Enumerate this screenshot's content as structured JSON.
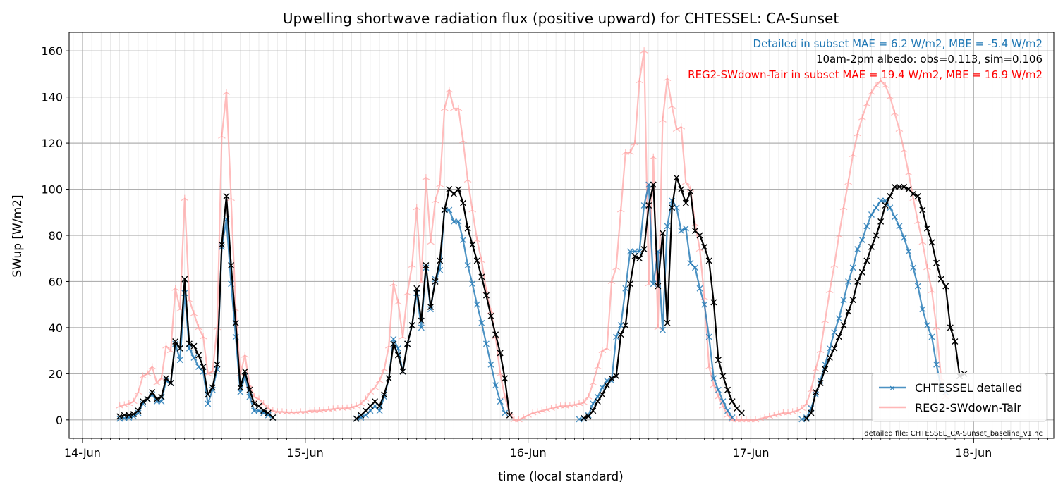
{
  "chart_data": {
    "type": "line",
    "title": "Upwelling shortwave radiation flux (positive upward) for CHTESSEL: CA-Sunset",
    "xlabel": "time (local standard)",
    "ylabel": "SWup [W/m2]",
    "ylim": [
      -8,
      168
    ],
    "xlim": [
      -0.06,
      4.36
    ],
    "x_unit": "days since 14-Jun 00:00",
    "grid": true,
    "yticks": [
      0,
      20,
      40,
      60,
      80,
      100,
      120,
      140,
      160
    ],
    "xticks": [
      {
        "pos": 0,
        "label": "14-Jun"
      },
      {
        "pos": 1,
        "label": "15-Jun"
      },
      {
        "pos": 2,
        "label": "16-Jun"
      },
      {
        "pos": 3,
        "label": "17-Jun"
      },
      {
        "pos": 4,
        "label": "18-Jun"
      }
    ],
    "annotations": [
      {
        "text": "Detailed in subset MAE = 6.2 W/m2, MBE = -5.4 W/m2",
        "color": "#1f77b4"
      },
      {
        "text": "10am-2pm albedo: obs=0.113, sim=0.106",
        "color": "#000000"
      },
      {
        "text": "REG2-SWdown-Tair in subset MAE = 19.4 W/m2, MBE = 16.9 W/m2",
        "color": "#ff0000"
      }
    ],
    "footnote": "detailed file: CHTESSEL_CA-Sunset_baseline_v1.nc",
    "legend": {
      "position": "lower-right",
      "entries": [
        "CHTESSEL detailed",
        "REG2-SWdown-Tair"
      ]
    },
    "series": [
      {
        "name": "REG2-SWdown-Tair",
        "color": "#ff9999",
        "x0": 0.167,
        "dx": 0.02083,
        "values": [
          6,
          6.5,
          7,
          8,
          12,
          19,
          20,
          23,
          16,
          18,
          32,
          30,
          57,
          48,
          96,
          52,
          46,
          40,
          36,
          20,
          21,
          40,
          123,
          142,
          96,
          48,
          20,
          28,
          15,
          10,
          9,
          7,
          5,
          4,
          3.5,
          3.5,
          3.3,
          3.3,
          3.3,
          3.5,
          3.5,
          4,
          4,
          4,
          4.3,
          4.5,
          4.7,
          5,
          5,
          5.2,
          5.5,
          6,
          7,
          9,
          12,
          14,
          17,
          22,
          32,
          59,
          51,
          36,
          55,
          67,
          92,
          60,
          105,
          77,
          95,
          102,
          135,
          143,
          135,
          135,
          121,
          104,
          91,
          78,
          69,
          56,
          47,
          36,
          20,
          10,
          3,
          0,
          0,
          1,
          2,
          3,
          3.5,
          4,
          4.5,
          5,
          5.5,
          6,
          6,
          6.3,
          6.5,
          7,
          7.5,
          10,
          16,
          23,
          30,
          31,
          60,
          66,
          91,
          116,
          116,
          120,
          147,
          160,
          59,
          114,
          40,
          130,
          148,
          136,
          126,
          127,
          103,
          100,
          85,
          74,
          53,
          23,
          15,
          10,
          6,
          2,
          0,
          0,
          0,
          0,
          0,
          0,
          0.5,
          1,
          1.5,
          2,
          2.5,
          3,
          3,
          3.5,
          4,
          5,
          7,
          13,
          22,
          30,
          43,
          56,
          67,
          80,
          92,
          103,
          115,
          124,
          131,
          137,
          142,
          145,
          147,
          145,
          140,
          133,
          126,
          117,
          107,
          96,
          86,
          77,
          66,
          56,
          40,
          18,
          10
        ]
      },
      {
        "name": "CHTESSEL detailed",
        "color": "#1f77b4",
        "x0": 0.167,
        "dx": 0.02083,
        "values": [
          0.5,
          0.7,
          1,
          1.5,
          3,
          7,
          9,
          11,
          8,
          8,
          17,
          16,
          33,
          26,
          55,
          31,
          27,
          23,
          21,
          7,
          13,
          22,
          75,
          87,
          59,
          36,
          12,
          19,
          10,
          4,
          4,
          3,
          2,
          1,
          null,
          null,
          null,
          null,
          null,
          null,
          null,
          null,
          null,
          null,
          null,
          null,
          null,
          null,
          null,
          null,
          null,
          0.5,
          1,
          2,
          4,
          6,
          4,
          10,
          18,
          35,
          31,
          21,
          33,
          41,
          55,
          40,
          66,
          48,
          61,
          65,
          91,
          91,
          86,
          86,
          78,
          67,
          59,
          50,
          42,
          33,
          24,
          15,
          8,
          3,
          null,
          null,
          null,
          null,
          null,
          null,
          null,
          null,
          null,
          null,
          null,
          null,
          null,
          null,
          null,
          0.3,
          0.5,
          2,
          7,
          10,
          14,
          17,
          17,
          36,
          41,
          57,
          73,
          73,
          73,
          93,
          102,
          59,
          73,
          39,
          84,
          95,
          92,
          82,
          83,
          68,
          66,
          57,
          50,
          36,
          18,
          13,
          8,
          4,
          1,
          null,
          null,
          null,
          null,
          null,
          null,
          null,
          null,
          null,
          null,
          null,
          null,
          null,
          null,
          0.3,
          1,
          5,
          11,
          17,
          24,
          31,
          38,
          44,
          52,
          60,
          66,
          74,
          78,
          84,
          89,
          92,
          95,
          95,
          92,
          88,
          84,
          79,
          73,
          66,
          58,
          48,
          41,
          36,
          24,
          14,
          12
        ]
      },
      {
        "name": "",
        "color": "#000000",
        "x0": 0.167,
        "dx": 0.02083,
        "values": [
          1.5,
          2,
          2,
          2.5,
          4,
          8,
          9,
          12,
          9,
          10,
          18,
          16,
          34,
          31,
          61,
          33,
          32,
          28,
          23,
          11,
          14,
          24,
          76,
          97,
          67,
          42,
          14,
          21,
          13,
          7,
          6,
          4,
          3,
          1,
          null,
          null,
          null,
          null,
          null,
          null,
          null,
          null,
          null,
          null,
          null,
          null,
          null,
          null,
          null,
          null,
          null,
          0.5,
          2,
          4,
          6,
          8,
          6,
          11,
          18,
          33,
          28,
          21,
          33,
          41,
          57,
          43,
          67,
          49,
          60,
          69,
          91,
          100,
          98,
          100,
          94,
          83,
          76,
          69,
          62,
          54,
          45,
          37,
          29,
          18,
          2,
          null,
          null,
          null,
          null,
          null,
          null,
          null,
          null,
          null,
          null,
          null,
          null,
          null,
          null,
          null,
          0.8,
          1.5,
          4,
          8,
          11,
          15,
          18,
          19,
          37,
          41,
          59,
          71,
          70,
          74,
          93,
          102,
          58,
          81,
          42,
          92,
          105,
          100,
          94,
          99,
          82,
          80,
          75,
          69,
          51,
          26,
          19,
          13,
          8,
          5,
          3,
          null,
          null,
          null,
          null,
          null,
          null,
          null,
          null,
          null,
          null,
          null,
          null,
          null,
          0.5,
          3,
          12,
          16,
          22,
          27,
          31,
          36,
          41,
          47,
          52,
          60,
          64,
          69,
          75,
          80,
          86,
          93,
          97,
          101,
          101,
          101,
          100,
          98,
          97,
          91,
          83,
          77,
          68,
          61,
          58,
          40,
          34,
          19,
          20
        ]
      }
    ]
  }
}
